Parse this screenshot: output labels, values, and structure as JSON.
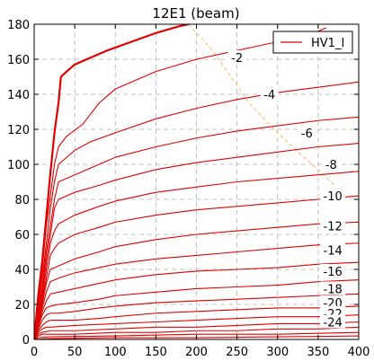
{
  "chart_data": {
    "type": "line",
    "title": "12E1 (beam)",
    "xlabel": "",
    "ylabel": "",
    "xlim": [
      0,
      400
    ],
    "ylim": [
      0,
      180
    ],
    "xticks": [
      0,
      50,
      100,
      150,
      200,
      250,
      300,
      350,
      400
    ],
    "yticks": [
      0,
      20,
      40,
      60,
      80,
      100,
      120,
      140,
      160,
      180
    ],
    "grid": true,
    "legend": {
      "position": "top-right",
      "entries": [
        "HV1_I"
      ]
    },
    "colors": {
      "curves": "#e00000",
      "contour": "#f5c580",
      "grid": "#b0b0b0"
    },
    "series": [
      {
        "name": "HV1_I",
        "points": [
          [
            0,
            0
          ],
          [
            5,
            25
          ],
          [
            10,
            45
          ],
          [
            15,
            70
          ],
          [
            20,
            95
          ],
          [
            25,
            118
          ],
          [
            30,
            135
          ],
          [
            33,
            150
          ],
          [
            40,
            153
          ],
          [
            50,
            157
          ],
          [
            70,
            161
          ],
          [
            90,
            165
          ],
          [
            120,
            170
          ],
          [
            150,
            175
          ],
          [
            180,
            179
          ],
          [
            190,
            180
          ]
        ]
      },
      {
        "points": [
          [
            0,
            0
          ],
          [
            5,
            20
          ],
          [
            10,
            40
          ],
          [
            15,
            65
          ],
          [
            20,
            82
          ],
          [
            25,
            100
          ],
          [
            30,
            110
          ],
          [
            40,
            116
          ],
          [
            60,
            123
          ],
          [
            80,
            135
          ],
          [
            100,
            143
          ],
          [
            150,
            153
          ],
          [
            200,
            160
          ],
          [
            250,
            165
          ],
          [
            300,
            170
          ],
          [
            350,
            176
          ],
          [
            360,
            178
          ]
        ]
      },
      {
        "points": [
          [
            0,
            0
          ],
          [
            5,
            18
          ],
          [
            10,
            35
          ],
          [
            15,
            55
          ],
          [
            20,
            75
          ],
          [
            25,
            90
          ],
          [
            30,
            100
          ],
          [
            50,
            108
          ],
          [
            70,
            113
          ],
          [
            100,
            118
          ],
          [
            150,
            126
          ],
          [
            200,
            132
          ],
          [
            250,
            137
          ],
          [
            300,
            141
          ],
          [
            350,
            144
          ],
          [
            400,
            147
          ]
        ]
      },
      {
        "points": [
          [
            0,
            0
          ],
          [
            5,
            16
          ],
          [
            10,
            30
          ],
          [
            15,
            50
          ],
          [
            20,
            65
          ],
          [
            25,
            80
          ],
          [
            30,
            90
          ],
          [
            50,
            94
          ],
          [
            80,
            100
          ],
          [
            100,
            104
          ],
          [
            150,
            110
          ],
          [
            200,
            115
          ],
          [
            250,
            119
          ],
          [
            300,
            122
          ],
          [
            350,
            125
          ],
          [
            400,
            127
          ]
        ]
      },
      {
        "points": [
          [
            0,
            0
          ],
          [
            5,
            14
          ],
          [
            10,
            27
          ],
          [
            15,
            45
          ],
          [
            20,
            60
          ],
          [
            25,
            75
          ],
          [
            30,
            80
          ],
          [
            50,
            84
          ],
          [
            80,
            88
          ],
          [
            100,
            91
          ],
          [
            150,
            97
          ],
          [
            200,
            101
          ],
          [
            250,
            104
          ],
          [
            300,
            107
          ],
          [
            350,
            110
          ],
          [
            400,
            112
          ]
        ]
      },
      {
        "points": [
          [
            0,
            0
          ],
          [
            5,
            12
          ],
          [
            10,
            24
          ],
          [
            15,
            40
          ],
          [
            20,
            55
          ],
          [
            25,
            62
          ],
          [
            30,
            66
          ],
          [
            50,
            71
          ],
          [
            80,
            76
          ],
          [
            100,
            79
          ],
          [
            150,
            84
          ],
          [
            200,
            87
          ],
          [
            250,
            90
          ],
          [
            300,
            92
          ],
          [
            350,
            94
          ],
          [
            400,
            96
          ]
        ]
      },
      {
        "points": [
          [
            0,
            0
          ],
          [
            5,
            11
          ],
          [
            10,
            22
          ],
          [
            15,
            35
          ],
          [
            20,
            48
          ],
          [
            25,
            52
          ],
          [
            30,
            55
          ],
          [
            50,
            60
          ],
          [
            80,
            64
          ],
          [
            100,
            67
          ],
          [
            150,
            71
          ],
          [
            200,
            74
          ],
          [
            250,
            76
          ],
          [
            300,
            78
          ],
          [
            350,
            80
          ],
          [
            400,
            82
          ]
        ]
      },
      {
        "points": [
          [
            0,
            0
          ],
          [
            5,
            10
          ],
          [
            10,
            20
          ],
          [
            15,
            32
          ],
          [
            20,
            40
          ],
          [
            30,
            42
          ],
          [
            50,
            46
          ],
          [
            80,
            50
          ],
          [
            100,
            53
          ],
          [
            150,
            57
          ],
          [
            200,
            60
          ],
          [
            250,
            62
          ],
          [
            300,
            64
          ],
          [
            350,
            66
          ],
          [
            400,
            67
          ]
        ]
      },
      {
        "points": [
          [
            0,
            0
          ],
          [
            5,
            9
          ],
          [
            10,
            18
          ],
          [
            15,
            27
          ],
          [
            20,
            33
          ],
          [
            30,
            35
          ],
          [
            50,
            38
          ],
          [
            80,
            41
          ],
          [
            100,
            43
          ],
          [
            150,
            46
          ],
          [
            200,
            48
          ],
          [
            250,
            50
          ],
          [
            300,
            52
          ],
          [
            350,
            54
          ],
          [
            400,
            55
          ]
        ]
      },
      {
        "points": [
          [
            0,
            0
          ],
          [
            5,
            8
          ],
          [
            10,
            16
          ],
          [
            15,
            22
          ],
          [
            20,
            26
          ],
          [
            30,
            27
          ],
          [
            50,
            29
          ],
          [
            80,
            32
          ],
          [
            100,
            34
          ],
          [
            150,
            37
          ],
          [
            200,
            39
          ],
          [
            250,
            40
          ],
          [
            300,
            41
          ],
          [
            350,
            43
          ],
          [
            400,
            44
          ]
        ]
      },
      {
        "points": [
          [
            0,
            0
          ],
          [
            5,
            7
          ],
          [
            10,
            14
          ],
          [
            15,
            18
          ],
          [
            20,
            19
          ],
          [
            30,
            20
          ],
          [
            50,
            21
          ],
          [
            80,
            23
          ],
          [
            100,
            25
          ],
          [
            150,
            27
          ],
          [
            200,
            29
          ],
          [
            250,
            30
          ],
          [
            300,
            31
          ],
          [
            350,
            33
          ],
          [
            400,
            34
          ]
        ]
      },
      {
        "points": [
          [
            0,
            0
          ],
          [
            5,
            6
          ],
          [
            10,
            11
          ],
          [
            15,
            14
          ],
          [
            20,
            15
          ],
          [
            30,
            15
          ],
          [
            50,
            16
          ],
          [
            80,
            18
          ],
          [
            100,
            19
          ],
          [
            150,
            21
          ],
          [
            200,
            22
          ],
          [
            250,
            23
          ],
          [
            300,
            24
          ],
          [
            350,
            25
          ],
          [
            400,
            26
          ]
        ]
      },
      {
        "points": [
          [
            0,
            0
          ],
          [
            5,
            5
          ],
          [
            10,
            8
          ],
          [
            15,
            10
          ],
          [
            20,
            11
          ],
          [
            50,
            11
          ],
          [
            80,
            12
          ],
          [
            100,
            13
          ],
          [
            150,
            15
          ],
          [
            200,
            16
          ],
          [
            250,
            17
          ],
          [
            300,
            18
          ],
          [
            350,
            18
          ],
          [
            400,
            19
          ]
        ]
      },
      {
        "points": [
          [
            0,
            0
          ],
          [
            5,
            4
          ],
          [
            10,
            6
          ],
          [
            15,
            7
          ],
          [
            20,
            7
          ],
          [
            50,
            8
          ],
          [
            100,
            9
          ],
          [
            150,
            10
          ],
          [
            200,
            11
          ],
          [
            250,
            12
          ],
          [
            300,
            13
          ],
          [
            350,
            13
          ],
          [
            400,
            14
          ]
        ]
      },
      {
        "points": [
          [
            0,
            0
          ],
          [
            5,
            3
          ],
          [
            10,
            4
          ],
          [
            20,
            5
          ],
          [
            50,
            5
          ],
          [
            100,
            6
          ],
          [
            150,
            7
          ],
          [
            200,
            7
          ],
          [
            250,
            8
          ],
          [
            300,
            9
          ],
          [
            350,
            9
          ],
          [
            400,
            10
          ]
        ]
      },
      {
        "points": [
          [
            0,
            0
          ],
          [
            5,
            2
          ],
          [
            10,
            3
          ],
          [
            20,
            3
          ],
          [
            50,
            3
          ],
          [
            100,
            4
          ],
          [
            150,
            4
          ],
          [
            200,
            5
          ],
          [
            250,
            5
          ],
          [
            300,
            6
          ],
          [
            350,
            6
          ],
          [
            400,
            7
          ]
        ]
      },
      {
        "points": [
          [
            0,
            0
          ],
          [
            5,
            1
          ],
          [
            20,
            1.5
          ],
          [
            100,
            2
          ],
          [
            200,
            3
          ],
          [
            300,
            3
          ],
          [
            400,
            4
          ]
        ]
      },
      {
        "points": [
          [
            0,
            0
          ],
          [
            20,
            0.5
          ],
          [
            100,
            1
          ],
          [
            200,
            1
          ],
          [
            300,
            1.5
          ],
          [
            400,
            2
          ]
        ]
      }
    ],
    "contour_line": [
      [
        190,
        180
      ],
      [
        220,
        165
      ],
      [
        265,
        135
      ],
      [
        300,
        118
      ],
      [
        330,
        105
      ],
      [
        350,
        97
      ],
      [
        370,
        88
      ]
    ],
    "curve_labels": [
      {
        "text": "-2",
        "x": 250,
        "y": 161
      },
      {
        "text": "-4",
        "x": 290,
        "y": 140
      },
      {
        "text": "-6",
        "x": 336,
        "y": 118
      },
      {
        "text": "-8",
        "x": 366,
        "y": 100
      },
      {
        "text": "-10",
        "x": 368,
        "y": 82
      },
      {
        "text": "-12",
        "x": 368,
        "y": 65
      },
      {
        "text": "-14",
        "x": 368,
        "y": 51
      },
      {
        "text": "-16",
        "x": 368,
        "y": 39
      },
      {
        "text": "-18",
        "x": 368,
        "y": 29
      },
      {
        "text": "-20",
        "x": 368,
        "y": 21
      },
      {
        "text": "-22",
        "x": 368,
        "y": 15
      },
      {
        "text": "-24",
        "x": 368,
        "y": 10
      }
    ]
  }
}
